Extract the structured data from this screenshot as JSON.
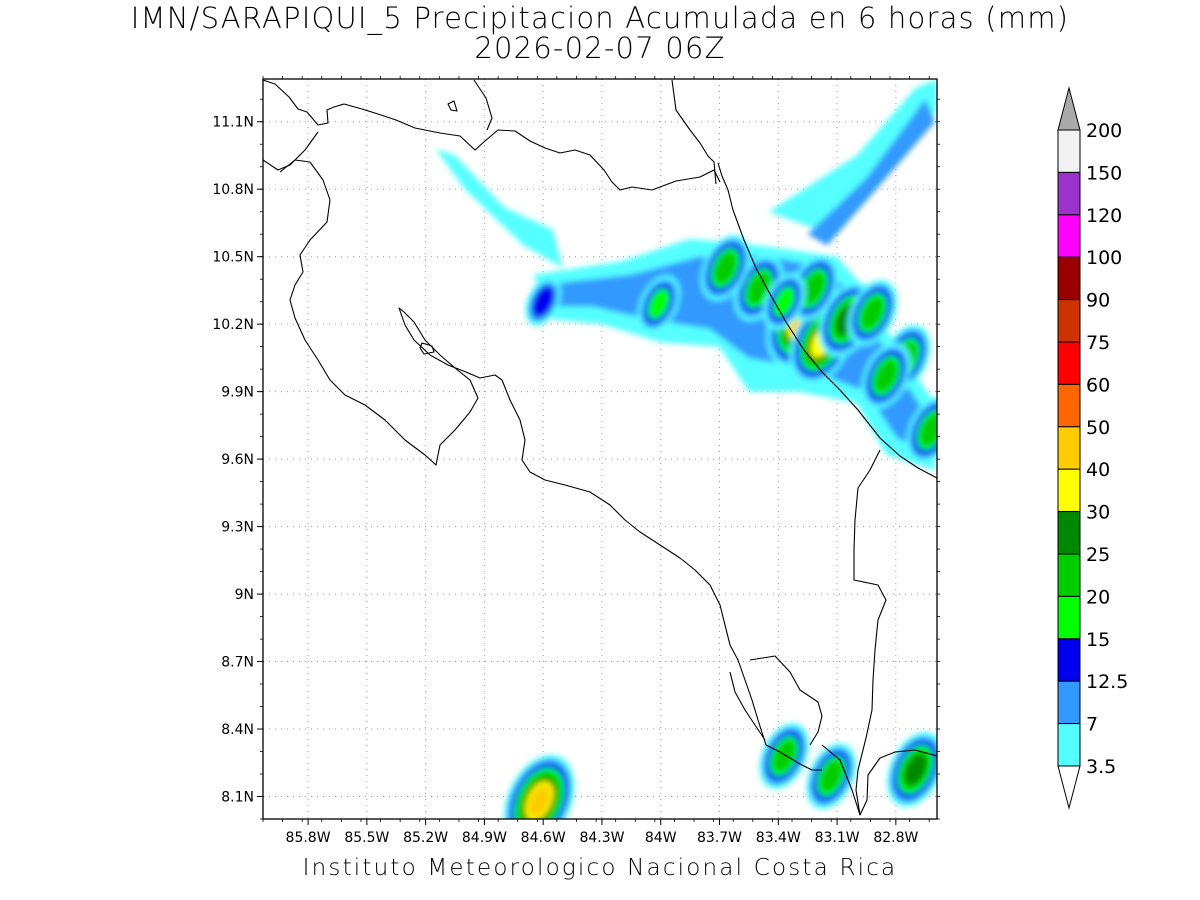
{
  "title": {
    "line1": "IMN/SARAPIQUI_5 Precipitacion Acumulada en 6 horas (mm)",
    "line2": "2026-02-07 06Z"
  },
  "credit": "Instituto Meteorologico Nacional Costa Rica",
  "chart_data": {
    "type": "heatmap",
    "x_axis": {
      "ticks": [
        -85.8,
        -85.5,
        -85.2,
        -84.9,
        -84.6,
        -84.3,
        -84.0,
        -83.7,
        -83.4,
        -83.1,
        -82.8
      ],
      "tick_labels": [
        "85.8W",
        "85.5W",
        "85.2W",
        "84.9W",
        "84.6W",
        "84.3W",
        "84W",
        "83.7W",
        "83.4W",
        "83.1W",
        "82.8W"
      ],
      "range": [
        -86.03,
        -82.59
      ]
    },
    "y_axis": {
      "ticks": [
        8.1,
        8.4,
        8.7,
        9.0,
        9.3,
        9.6,
        9.9,
        10.2,
        10.5,
        10.8,
        11.1
      ],
      "tick_labels": [
        "8.1N",
        "8.4N",
        "8.7N",
        "9N",
        "9.3N",
        "9.6N",
        "9.9N",
        "10.2N",
        "10.5N",
        "10.8N",
        "11.1N"
      ],
      "range": [
        8.0,
        11.29
      ]
    },
    "grid": "dotted",
    "colorbar": {
      "units": "mm",
      "levels": [
        3.5,
        7,
        12.5,
        15,
        20,
        25,
        30,
        40,
        50,
        60,
        75,
        90,
        100,
        120,
        150,
        200
      ],
      "labels": [
        "3.5",
        "7",
        "12.5",
        "15",
        "20",
        "25",
        "30",
        "40",
        "50",
        "60",
        "75",
        "90",
        "100",
        "120",
        "150",
        "200"
      ],
      "colors": [
        "#55ffff",
        "#3399ff",
        "#0000ee",
        "#00ff00",
        "#00cc00",
        "#008800",
        "#ffff00",
        "#ffcc00",
        "#ff6600",
        "#ff0000",
        "#cc3300",
        "#990000",
        "#ff00ff",
        "#9933cc",
        "#f2f2f2"
      ],
      "under_color": "#ffffff",
      "over_color": "#aaaaaa"
    },
    "precip_cells": [
      {
        "lon": -83.28,
        "lat": 10.21,
        "peak_mm": 45
      },
      {
        "lon": -83.18,
        "lat": 10.12,
        "peak_mm": 32
      },
      {
        "lon": -83.05,
        "lat": 10.22,
        "peak_mm": 28
      },
      {
        "lon": -83.22,
        "lat": 10.36,
        "peak_mm": 22
      },
      {
        "lon": -83.5,
        "lat": 10.36,
        "peak_mm": 22
      },
      {
        "lon": -83.67,
        "lat": 10.45,
        "peak_mm": 20
      },
      {
        "lon": -83.37,
        "lat": 10.3,
        "peak_mm": 18
      },
      {
        "lon": -82.92,
        "lat": 10.25,
        "peak_mm": 22
      },
      {
        "lon": -82.75,
        "lat": 10.05,
        "peak_mm": 20
      },
      {
        "lon": -82.85,
        "lat": 9.97,
        "peak_mm": 22
      },
      {
        "lon": -82.62,
        "lat": 9.73,
        "peak_mm": 22
      },
      {
        "lon": -84.01,
        "lat": 10.29,
        "peak_mm": 15
      },
      {
        "lon": -84.6,
        "lat": 10.3,
        "peak_mm": 14
      },
      {
        "lon": -84.62,
        "lat": 8.08,
        "peak_mm": 45
      },
      {
        "lon": -83.37,
        "lat": 8.28,
        "peak_mm": 22
      },
      {
        "lon": -83.13,
        "lat": 8.19,
        "peak_mm": 20
      },
      {
        "lon": -82.7,
        "lat": 8.22,
        "peak_mm": 25
      }
    ]
  }
}
